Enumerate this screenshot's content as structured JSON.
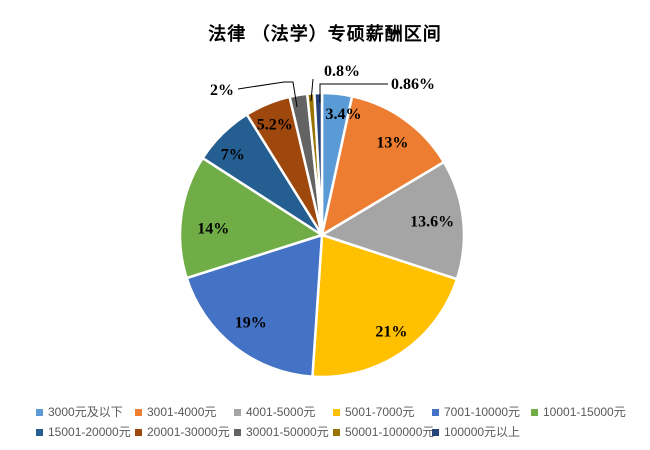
{
  "title": "法律 （法学）专硕薪酬区间",
  "chart_data": {
    "type": "pie",
    "title": "法律 （法学）专硕薪酬区间",
    "legend_position": "bottom",
    "start_angle_deg": 0,
    "direction": "clockwise",
    "unit": "%",
    "slices": [
      {
        "name": "3000元及以下",
        "value": 3.4,
        "label": "3.4%",
        "color": "#5B9BD5"
      },
      {
        "name": "3001-4000元",
        "value": 13,
        "label": "13%",
        "color": "#ED7D31"
      },
      {
        "name": "4001-5000元",
        "value": 13.6,
        "label": "13.6%",
        "color": "#A5A5A5"
      },
      {
        "name": "5001-7000元",
        "value": 21,
        "label": "21%",
        "color": "#FFC000"
      },
      {
        "name": "7001-10000元",
        "value": 19,
        "label": "19%",
        "color": "#4472C4"
      },
      {
        "name": "10001-15000元",
        "value": 14,
        "label": "14%",
        "color": "#70AD47"
      },
      {
        "name": "15001-20000元",
        "value": 7,
        "label": "7%",
        "color": "#255E91"
      },
      {
        "name": "20001-30000元",
        "value": 5.2,
        "label": "5.2%",
        "color": "#9E480E"
      },
      {
        "name": "30001-50000元",
        "value": 2,
        "label": "2%",
        "color": "#636363"
      },
      {
        "name": "50001-100000元",
        "value": 0.8,
        "label": "0.8%",
        "color": "#997300"
      },
      {
        "name": "100000元以上",
        "value": 0.86,
        "label": "0.86%",
        "color": "#264478"
      }
    ]
  }
}
